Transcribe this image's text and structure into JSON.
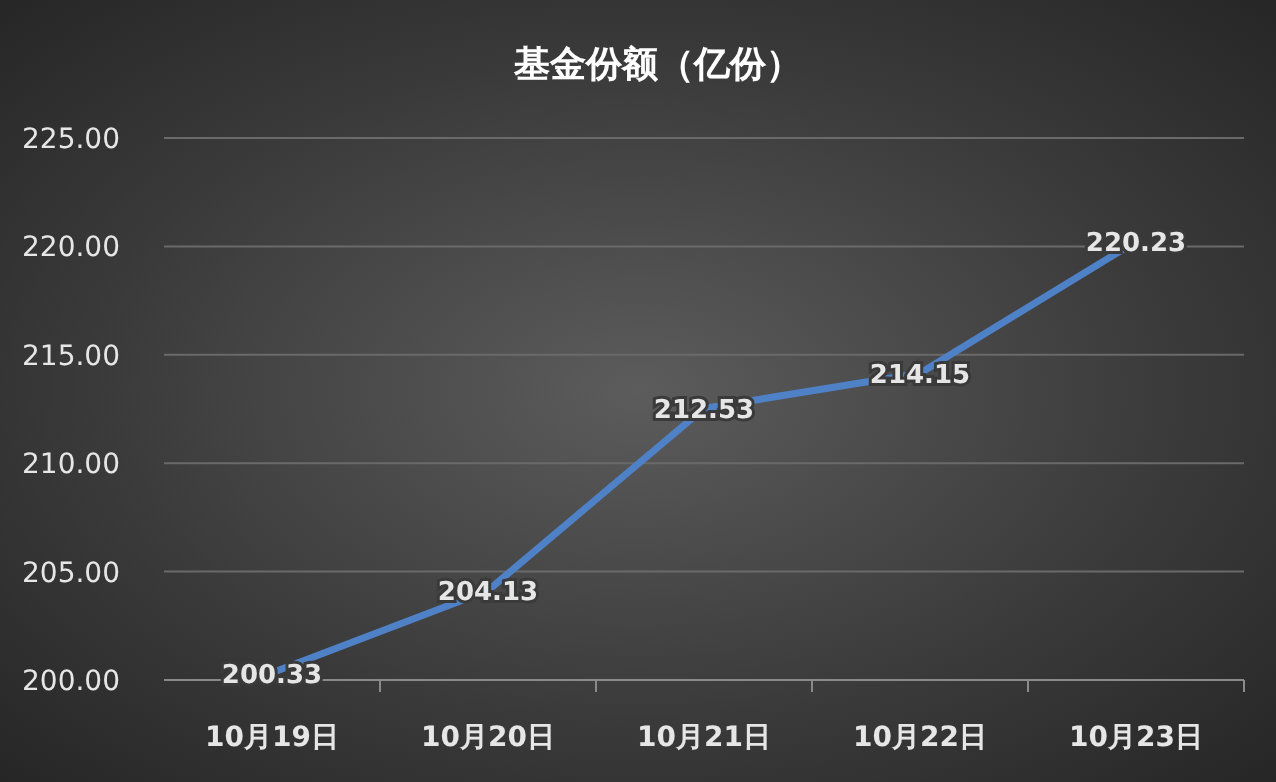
{
  "chart_data": {
    "type": "line",
    "title": "基金份额（亿份）",
    "categories": [
      "10月19日",
      "10月20日",
      "10月21日",
      "10月22日",
      "10月23日"
    ],
    "series": [
      {
        "color": "#4f81c7",
        "values": [
          200.33,
          204.13,
          212.53,
          214.15,
          220.23
        ]
      }
    ],
    "ylim": [
      200,
      225
    ],
    "yticks": [
      {
        "value": 200,
        "label": "200.00"
      },
      {
        "value": 205,
        "label": "205.00"
      },
      {
        "value": 210,
        "label": "210.00"
      },
      {
        "value": 215,
        "label": "215.00"
      },
      {
        "value": 220,
        "label": "220.00"
      },
      {
        "value": 225,
        "label": "225.00"
      }
    ],
    "grid": "y",
    "data_labels": true,
    "marker": "none",
    "line_style": "solid"
  }
}
